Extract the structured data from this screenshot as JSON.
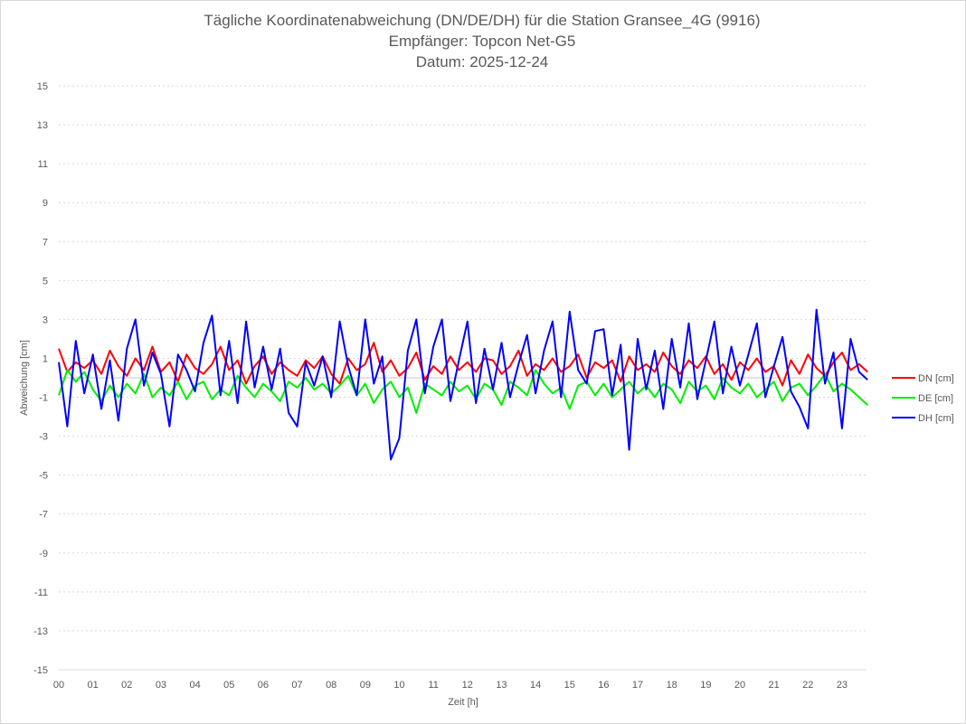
{
  "chart_data": {
    "type": "line",
    "title": [
      "Tägliche Koordinatenabweichung (DN/DE/DH) für die Station Gransee_4G (9916)",
      "Empfänger: Topcon Net-G5",
      "Datum: 2025-12-24"
    ],
    "xlabel": "Zeit [h]",
    "ylabel": "Abweichung [cm]",
    "ylim": [
      -15,
      15
    ],
    "yticks": [
      15,
      13,
      11,
      9,
      7,
      5,
      3,
      1,
      -1,
      -3,
      -5,
      -7,
      -9,
      -11,
      -13,
      -15
    ],
    "xticks": [
      "00",
      "01",
      "02",
      "03",
      "04",
      "05",
      "06",
      "07",
      "08",
      "09",
      "10",
      "11",
      "12",
      "13",
      "14",
      "15",
      "16",
      "17",
      "18",
      "19",
      "20",
      "21",
      "22",
      "23"
    ],
    "xlim": [
      0,
      24
    ],
    "grid": "dotted horizontal at odd values, solid zero line",
    "legend_position": "right",
    "x": [
      0,
      0.25,
      0.5,
      0.75,
      1,
      1.25,
      1.5,
      1.75,
      2,
      2.25,
      2.5,
      2.75,
      3,
      3.25,
      3.5,
      3.75,
      4,
      4.25,
      4.5,
      4.75,
      5,
      5.25,
      5.5,
      5.75,
      6,
      6.25,
      6.5,
      6.75,
      7,
      7.25,
      7.5,
      7.75,
      8,
      8.25,
      8.5,
      8.75,
      9,
      9.25,
      9.5,
      9.75,
      10,
      10.25,
      10.5,
      10.75,
      11,
      11.25,
      11.5,
      11.75,
      12,
      12.25,
      12.5,
      12.75,
      13,
      13.25,
      13.5,
      13.75,
      14,
      14.25,
      14.5,
      14.75,
      15,
      15.25,
      15.5,
      15.75,
      16,
      16.25,
      16.5,
      16.75,
      17,
      17.25,
      17.5,
      17.75,
      18,
      18.25,
      18.5,
      18.75,
      19,
      19.25,
      19.5,
      19.75,
      20,
      20.25,
      20.5,
      20.75,
      21,
      21.25,
      21.5,
      21.75,
      22,
      22.25,
      22.5,
      22.75,
      23,
      23.25,
      23.5,
      23.75
    ],
    "series": [
      {
        "name": "DN [cm]",
        "color": "#ff0000",
        "values": [
          1.5,
          0.3,
          0.8,
          0.5,
          0.9,
          0.2,
          1.4,
          0.6,
          0.1,
          1.0,
          0.4,
          1.6,
          0.3,
          0.8,
          -0.2,
          1.2,
          0.5,
          0.2,
          0.7,
          1.6,
          0.4,
          0.9,
          -0.3,
          0.6,
          1.1,
          0.2,
          0.8,
          0.4,
          0.1,
          0.9,
          0.5,
          1.1,
          0.2,
          -0.3,
          1.0,
          0.4,
          0.7,
          1.8,
          0.3,
          0.9,
          0.1,
          0.5,
          1.3,
          -0.1,
          0.6,
          0.2,
          1.1,
          0.4,
          0.8,
          0.3,
          1.0,
          0.9,
          0.2,
          0.6,
          1.4,
          0.1,
          0.7,
          0.4,
          1.0,
          0.3,
          0.6,
          1.2,
          0.0,
          0.8,
          0.5,
          0.9,
          -0.2,
          1.1,
          0.4,
          0.7,
          0.3,
          1.3,
          0.6,
          0.2,
          0.9,
          0.5,
          1.1,
          0.2,
          0.7,
          -0.1,
          0.8,
          0.4,
          1.0,
          0.3,
          0.6,
          -0.4,
          0.9,
          0.2,
          1.2,
          0.5,
          0.1,
          0.8,
          1.3,
          0.4,
          0.7,
          0.3
        ]
      },
      {
        "name": "DE [cm]",
        "color": "#00ee00",
        "values": [
          -0.9,
          0.4,
          -0.2,
          0.3,
          -0.6,
          -1.2,
          -0.4,
          -1.0,
          -0.3,
          -0.8,
          0.2,
          -1.0,
          -0.5,
          -0.9,
          -0.2,
          -1.1,
          -0.4,
          -0.2,
          -1.1,
          -0.6,
          -0.9,
          0.1,
          -0.5,
          -1.0,
          -0.3,
          -0.7,
          -1.2,
          -0.2,
          -0.5,
          0.0,
          -0.6,
          -0.3,
          -0.8,
          -0.4,
          0.1,
          -0.9,
          -0.3,
          -1.3,
          -0.6,
          -0.2,
          -1.0,
          -0.5,
          -1.8,
          -0.3,
          -0.6,
          -0.9,
          -0.2,
          -0.7,
          -0.4,
          -1.1,
          -0.3,
          -0.6,
          -1.4,
          -0.2,
          -0.5,
          -0.9,
          0.4,
          -0.3,
          -0.8,
          -0.5,
          -1.6,
          -0.4,
          -0.2,
          -0.9,
          -0.3,
          -1.0,
          -0.6,
          -0.2,
          -0.8,
          -0.4,
          -1.0,
          -0.3,
          -0.6,
          -1.3,
          -0.2,
          -0.7,
          -0.4,
          -1.1,
          0.0,
          -0.5,
          -0.8,
          -0.3,
          -1.0,
          -0.6,
          -0.2,
          -1.2,
          -0.5,
          -0.3,
          -0.9,
          -0.4,
          0.2,
          -0.7,
          -0.3,
          -0.6,
          -1.0,
          -1.4
        ]
      },
      {
        "name": "DH [cm]",
        "color": "#0000ff",
        "values": [
          0.8,
          -2.5,
          1.9,
          -0.8,
          1.2,
          -1.6,
          0.9,
          -2.2,
          1.5,
          3.0,
          -0.4,
          1.3,
          0.2,
          -2.5,
          1.2,
          0.4,
          -0.7,
          1.8,
          3.2,
          -0.9,
          1.9,
          -1.3,
          2.9,
          -0.5,
          1.6,
          -0.6,
          1.5,
          -1.8,
          -2.5,
          0.8,
          -0.4,
          1.1,
          -1.0,
          2.9,
          0.6,
          -0.9,
          3.0,
          -0.3,
          1.1,
          -4.2,
          -3.1,
          1.4,
          3.0,
          -0.8,
          1.6,
          3.0,
          -1.2,
          0.9,
          2.9,
          -1.3,
          1.5,
          -0.6,
          1.8,
          -1.0,
          0.7,
          2.2,
          -0.8,
          1.4,
          2.9,
          -1.0,
          3.4,
          0.4,
          -0.3,
          2.4,
          2.5,
          -0.9,
          1.7,
          -3.7,
          2.0,
          -0.6,
          1.4,
          -1.6,
          2.0,
          -0.5,
          2.8,
          -1.1,
          0.9,
          2.9,
          -0.8,
          1.6,
          -0.4,
          1.2,
          2.8,
          -1.0,
          0.6,
          2.1,
          -0.7,
          -1.5,
          -2.6,
          3.5,
          -0.3,
          1.3,
          -2.6,
          2.0,
          0.3,
          -0.1
        ]
      }
    ]
  }
}
